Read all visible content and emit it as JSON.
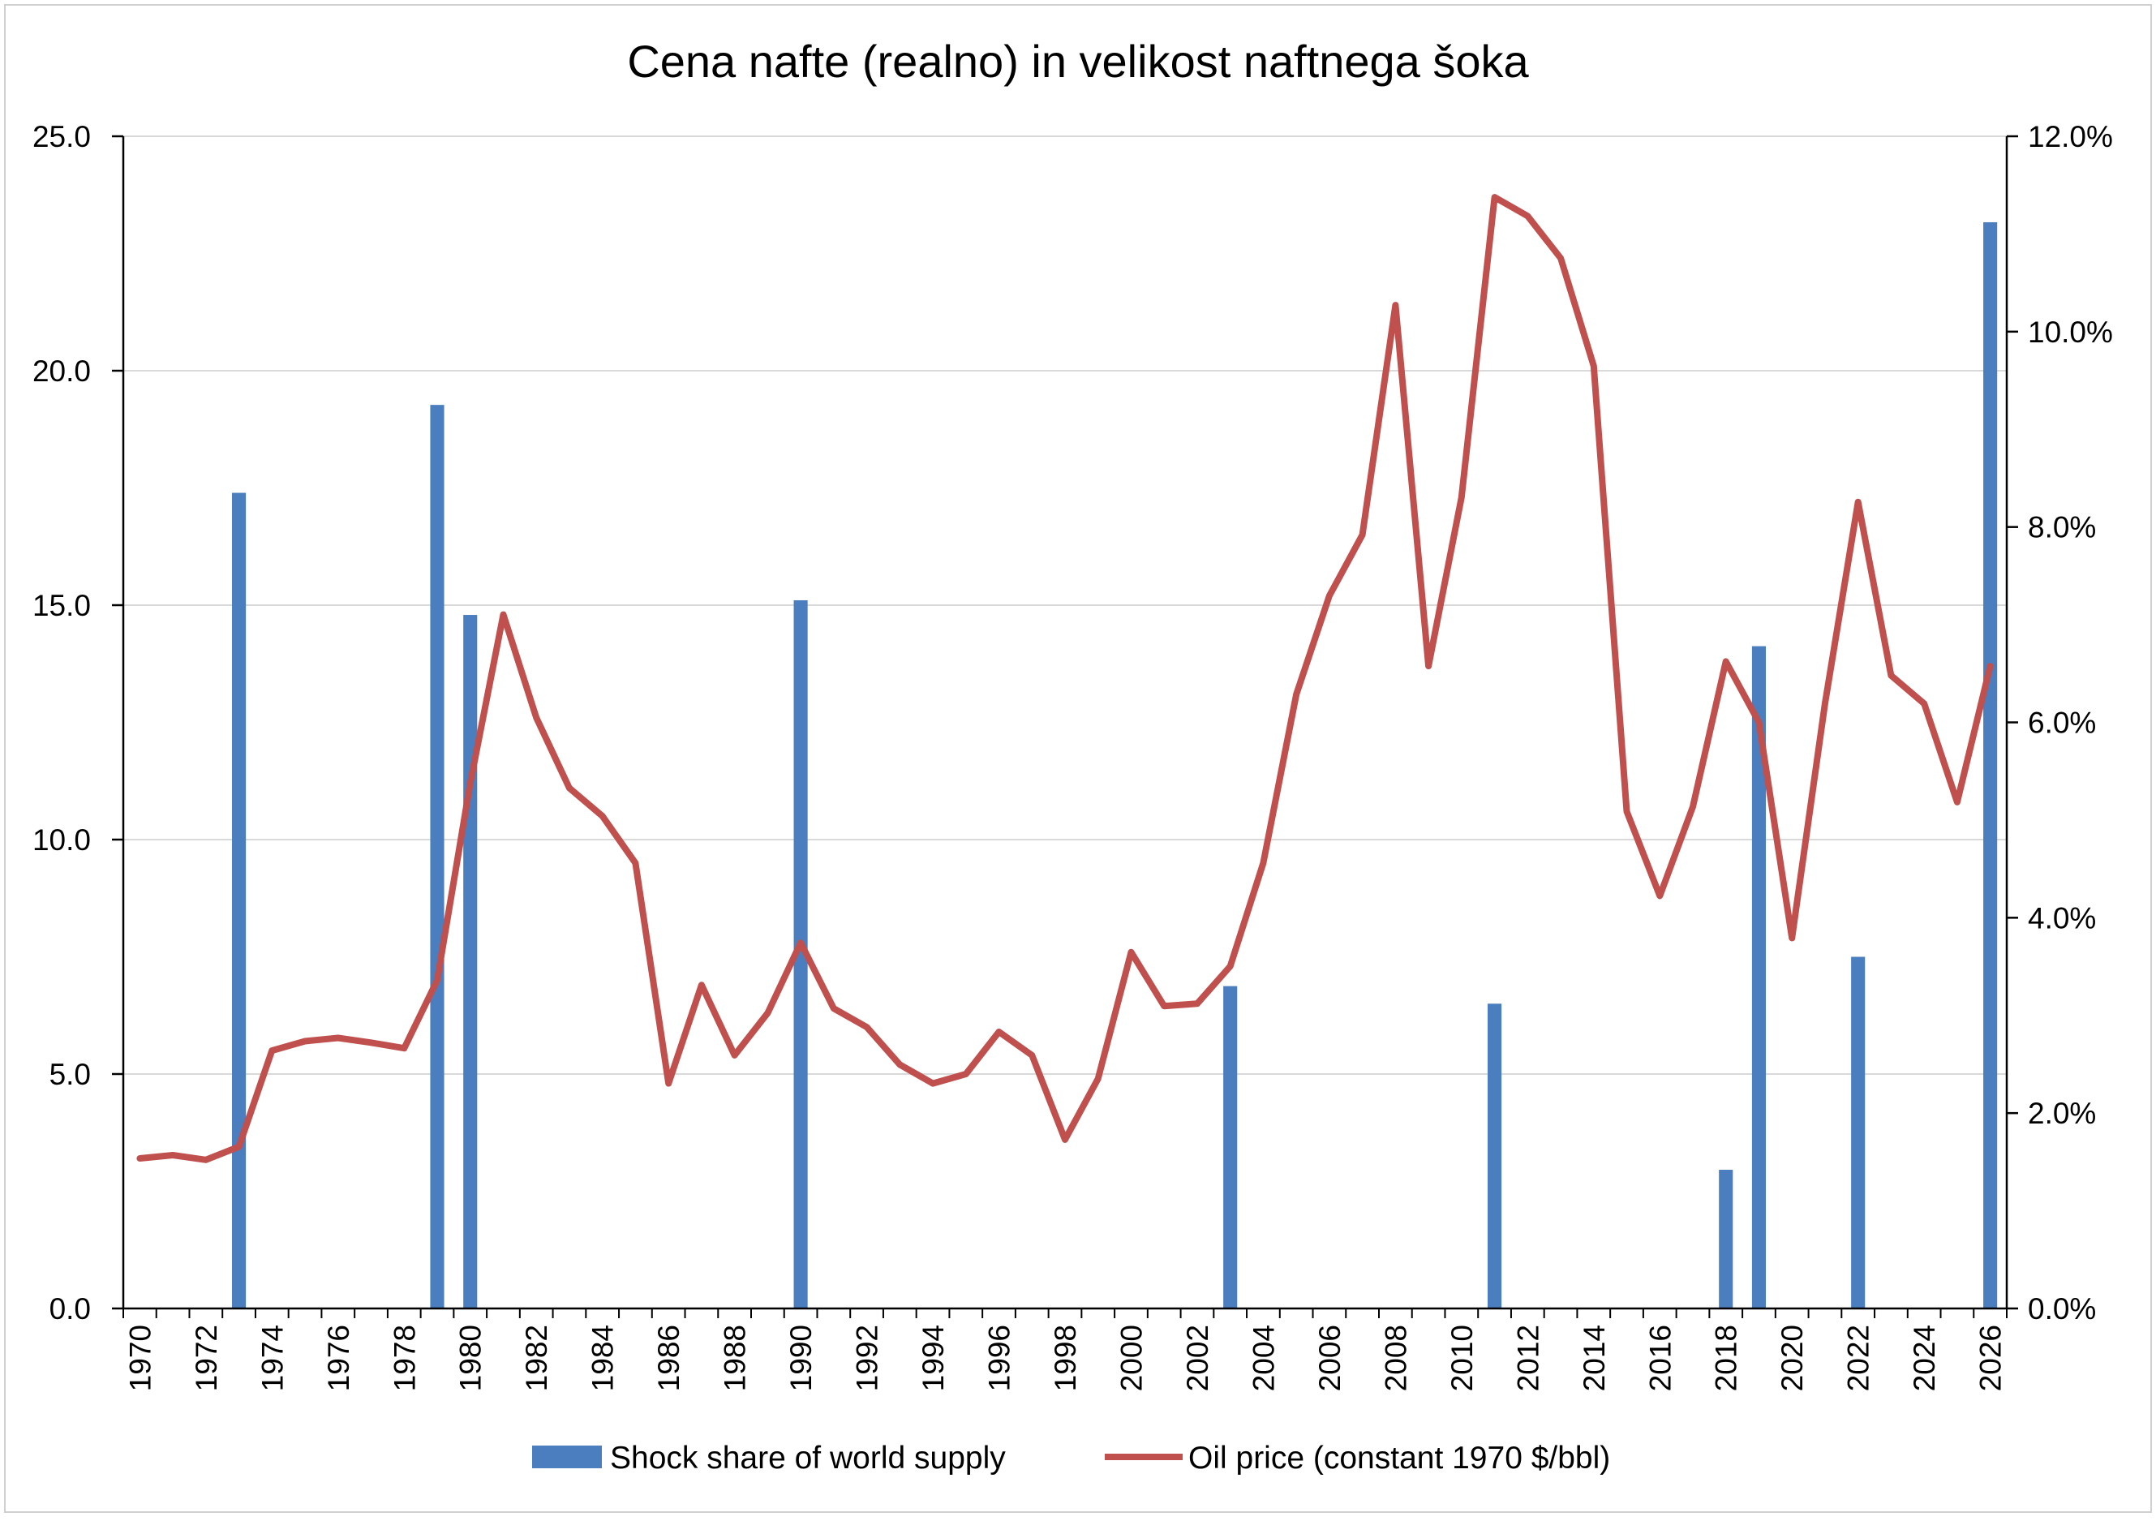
{
  "chart_data": {
    "type": "bar+line",
    "title": "Cena nafte (realno) in velikost naftnega šoka",
    "left_axis": {
      "ylim": [
        0,
        25
      ],
      "ticks": [
        0,
        5,
        10,
        15,
        20,
        25
      ],
      "tick_labels": [
        "0.0",
        "5.0",
        "10.0",
        "15.0",
        "20.0",
        "25.0"
      ]
    },
    "right_axis": {
      "ylim": [
        0,
        12
      ],
      "ticks": [
        0,
        2,
        4,
        6,
        8,
        10,
        12
      ],
      "tick_labels": [
        "0.0%",
        "2.0%",
        "4.0%",
        "6.0%",
        "8.0%",
        "10.0%",
        "12.0%"
      ]
    },
    "x_axis": {
      "range": [
        1970,
        2026
      ],
      "tick_labels": [
        "1970",
        "1972",
        "1974",
        "1976",
        "1978",
        "1980",
        "1982",
        "1984",
        "1986",
        "1988",
        "1990",
        "1992",
        "1994",
        "1996",
        "1998",
        "2000",
        "2002",
        "2004",
        "2006",
        "2008",
        "2010",
        "2012",
        "2014",
        "2016",
        "2018",
        "2020",
        "2022",
        "2024",
        "2026"
      ]
    },
    "grid": true,
    "legend_position": "bottom",
    "series": [
      {
        "name": "Shock share of world supply",
        "type": "bar",
        "axis": "right",
        "color": "#4a7ebf",
        "points": [
          {
            "x": 1973,
            "y": 8.35
          },
          {
            "x": 1979,
            "y": 9.25
          },
          {
            "x": 1980,
            "y": 7.1
          },
          {
            "x": 1990,
            "y": 7.25
          },
          {
            "x": 2003,
            "y": 3.3
          },
          {
            "x": 2011,
            "y": 3.12
          },
          {
            "x": 2018,
            "y": 1.42
          },
          {
            "x": 2019,
            "y": 6.78
          },
          {
            "x": 2022,
            "y": 3.6
          },
          {
            "x": 2026,
            "y": 11.12
          }
        ]
      },
      {
        "name": "Oil price (constant 1970 $/bbl)",
        "type": "line",
        "axis": "left",
        "color": "#c0504d",
        "x": [
          1970,
          1971,
          1972,
          1973,
          1974,
          1975,
          1976,
          1977,
          1978,
          1979,
          1980,
          1981,
          1982,
          1983,
          1984,
          1985,
          1986,
          1987,
          1988,
          1989,
          1990,
          1991,
          1992,
          1993,
          1994,
          1995,
          1996,
          1997,
          1998,
          1999,
          2000,
          2001,
          2002,
          2003,
          2004,
          2005,
          2006,
          2007,
          2008,
          2009,
          2010,
          2011,
          2012,
          2013,
          2014,
          2015,
          2016,
          2017,
          2018,
          2019,
          2020,
          2021,
          2022,
          2023,
          2024,
          2025,
          2026
        ],
        "values": [
          3.2,
          3.27,
          3.17,
          3.45,
          5.5,
          5.7,
          5.77,
          5.67,
          5.55,
          7.0,
          11.2,
          14.8,
          12.6,
          11.1,
          10.5,
          9.5,
          4.8,
          6.9,
          5.4,
          6.3,
          7.8,
          6.4,
          6.0,
          5.2,
          4.8,
          5.0,
          5.9,
          5.4,
          3.6,
          4.9,
          7.6,
          6.45,
          6.5,
          7.3,
          9.5,
          13.1,
          15.2,
          16.5,
          21.4,
          13.7,
          17.3,
          23.7,
          23.3,
          22.4,
          20.1,
          10.6,
          8.8,
          10.7,
          13.8,
          12.5,
          7.9,
          12.9,
          17.2,
          13.5,
          12.9,
          10.8,
          13.7
        ]
      }
    ]
  }
}
